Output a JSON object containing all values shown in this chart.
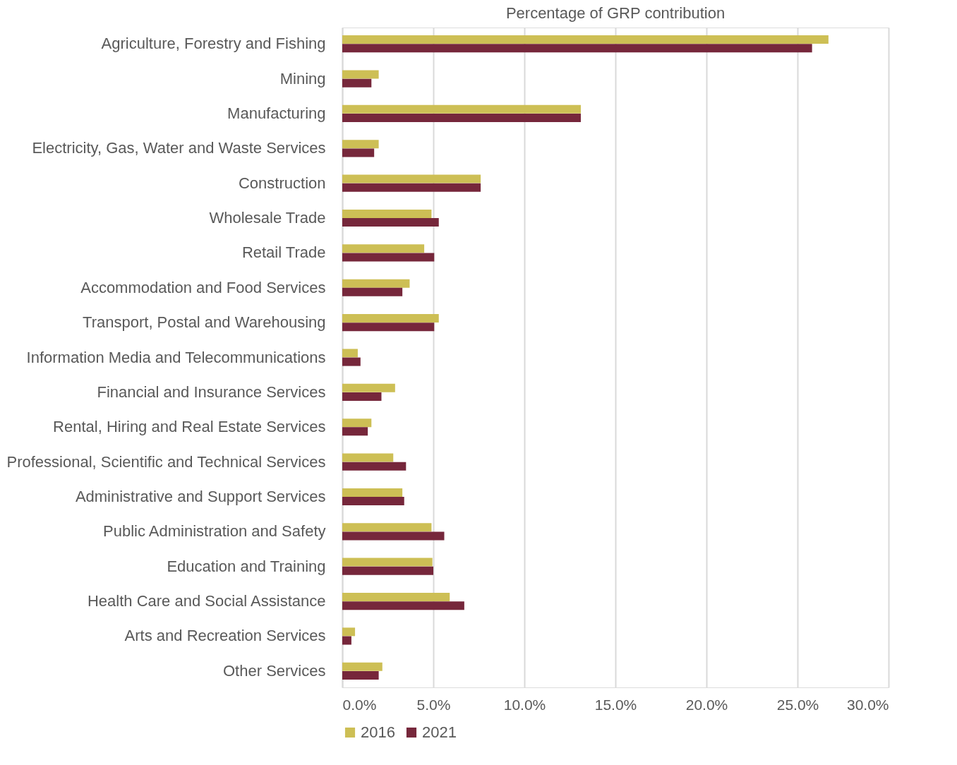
{
  "chart_data": {
    "type": "bar",
    "orientation": "horizontal",
    "title": "Percentage of GRP contribution",
    "categories": [
      "Agriculture, Forestry and Fishing",
      "Mining",
      "Manufacturing",
      "Electricity, Gas, Water and Waste Services",
      "Construction",
      "Wholesale Trade",
      "Retail Trade",
      "Accommodation and Food Services",
      "Transport, Postal and Warehousing",
      "Information Media and Telecommunications",
      "Financial and Insurance Services",
      "Rental, Hiring and Real Estate Services",
      "Professional, Scientific and Technical Services",
      "Administrative and Support Services",
      "Public Administration and Safety",
      "Education and Training",
      "Health Care and Social Assistance",
      "Arts and Recreation Services",
      "Other Services"
    ],
    "series": [
      {
        "name": "2016",
        "color": "#cdbf55",
        "values": [
          26.7,
          2.0,
          13.1,
          2.0,
          7.6,
          4.9,
          4.5,
          3.7,
          5.3,
          0.85,
          2.9,
          1.6,
          2.8,
          3.3,
          4.9,
          4.95,
          5.9,
          0.7,
          2.2
        ]
      },
      {
        "name": "2021",
        "color": "#76273b",
        "values": [
          25.8,
          1.6,
          13.1,
          1.75,
          7.6,
          5.3,
          5.05,
          3.3,
          5.05,
          1.0,
          2.15,
          1.4,
          3.5,
          3.4,
          5.6,
          5.0,
          6.7,
          0.5,
          2.0
        ]
      }
    ],
    "xlim": [
      0,
      30
    ],
    "xticks": [
      {
        "value": 0,
        "label": "0.0%"
      },
      {
        "value": 5,
        "label": "5.0%"
      },
      {
        "value": 10,
        "label": "10.0%"
      },
      {
        "value": 15,
        "label": "15.0%"
      },
      {
        "value": 20,
        "label": "20.0%"
      },
      {
        "value": 25,
        "label": "25.0%"
      },
      {
        "value": 30,
        "label": "30.0%"
      }
    ],
    "grid": "x",
    "legend": "bottom"
  }
}
